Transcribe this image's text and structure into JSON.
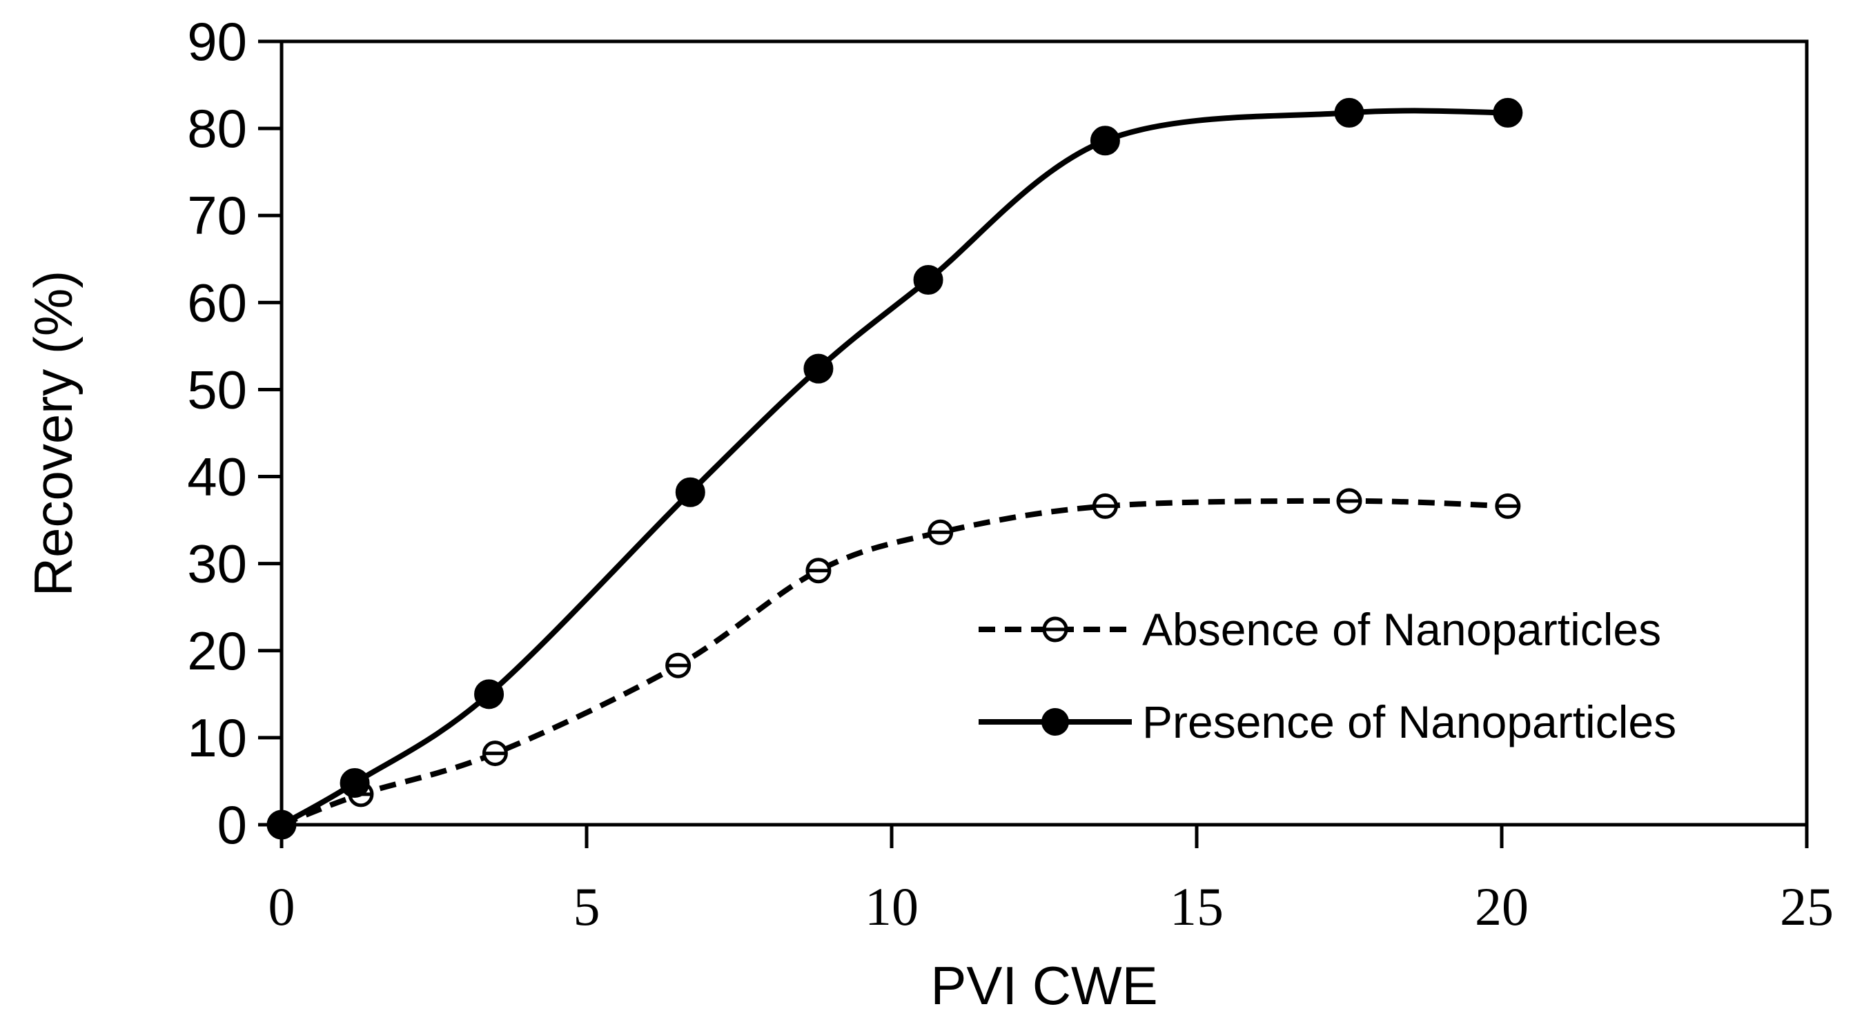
{
  "chart_data": {
    "type": "line",
    "title": "",
    "xlabel": "PVI CWE",
    "ylabel": "Recovery (%)",
    "xlim": [
      0,
      25
    ],
    "ylim": [
      0,
      90
    ],
    "xticks": [
      0,
      5,
      10,
      15,
      20,
      25
    ],
    "yticks": [
      0,
      10,
      20,
      30,
      40,
      50,
      60,
      70,
      80,
      90
    ],
    "grid": false,
    "legend_position": "lower-right inside plot",
    "series": [
      {
        "name": "Absence of Nanoparticles",
        "style": "dashed",
        "marker": "open-circle",
        "color": "#000000",
        "x": [
          0,
          1.3,
          3.5,
          6.5,
          8.8,
          10.8,
          13.5,
          17.5,
          20.1
        ],
        "y": [
          0,
          3.5,
          8.2,
          18.3,
          29.2,
          33.6,
          36.6,
          37.2,
          36.6
        ]
      },
      {
        "name": "Presence of Nanoparticles",
        "style": "solid",
        "marker": "filled-circle",
        "color": "#000000",
        "x": [
          0,
          1.2,
          3.4,
          6.7,
          8.8,
          10.6,
          13.5,
          17.5,
          20.1
        ],
        "y": [
          0,
          4.8,
          15.0,
          38.2,
          52.4,
          62.6,
          78.6,
          81.8,
          81.8
        ]
      }
    ]
  }
}
